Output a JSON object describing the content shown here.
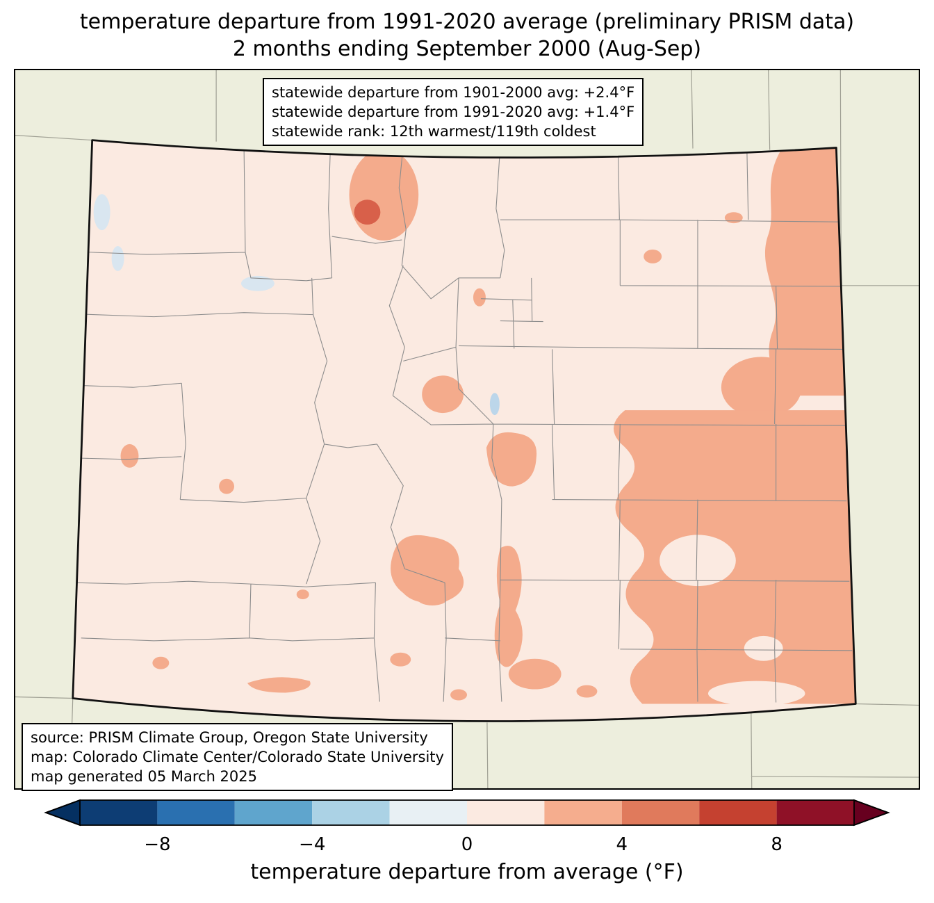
{
  "title": {
    "line1": "temperature departure from 1991-2020 average (preliminary PRISM data)",
    "line2": "2 months ending September 2000 (Aug-Sep)"
  },
  "stats_box": {
    "lines": [
      "statewide departure from 1901-2000 avg: +2.4°F",
      "statewide departure from 1991-2020 avg: +1.4°F",
      "statewide rank: 12th warmest/119th coldest"
    ]
  },
  "source_box": {
    "lines": [
      "source: PRISM Climate Group, Oregon State University",
      "map: Colorado Climate Center/Colorado State University",
      "map generated 05 March 2025"
    ]
  },
  "colorbar": {
    "label": "temperature departure from average (°F)",
    "range": [
      -10,
      10
    ],
    "ticks": [
      {
        "value": -8,
        "label": "−8"
      },
      {
        "value": -4,
        "label": "−4"
      },
      {
        "value": 0,
        "label": "0"
      },
      {
        "value": 4,
        "label": "4"
      },
      {
        "value": 8,
        "label": "8"
      }
    ],
    "segments": [
      {
        "from": -10,
        "to": -8,
        "color": "#0d3d74"
      },
      {
        "from": -8,
        "to": -6,
        "color": "#2a70b0"
      },
      {
        "from": -6,
        "to": -4,
        "color": "#5fa5cd"
      },
      {
        "from": -4,
        "to": -2,
        "color": "#abd2e5"
      },
      {
        "from": -2,
        "to": 0,
        "color": "#e8f0f4"
      },
      {
        "from": 0,
        "to": 2,
        "color": "#fbeae1"
      },
      {
        "from": 2,
        "to": 4,
        "color": "#f5ad8e"
      },
      {
        "from": 4,
        "to": 6,
        "color": "#e07a5c"
      },
      {
        "from": 6,
        "to": 8,
        "color": "#c54130"
      },
      {
        "from": 8,
        "to": 10,
        "color": "#8f1127"
      }
    ],
    "under_arrow_color": "#053061",
    "over_arrow_color": "#67001f"
  },
  "map": {
    "region": "Colorado",
    "palette": {
      "map-bg": "#edeedd",
      "base-anom": "#fbeae1",
      "salmon-anom": "#f4ab8c",
      "strong-anom": "#d8604a",
      "coolpale-anom": "#d9e6f0",
      "water": "#bcd6ea",
      "county-line": "#8c8c8c",
      "state-line": "#a0a094",
      "border": "#111111"
    }
  }
}
